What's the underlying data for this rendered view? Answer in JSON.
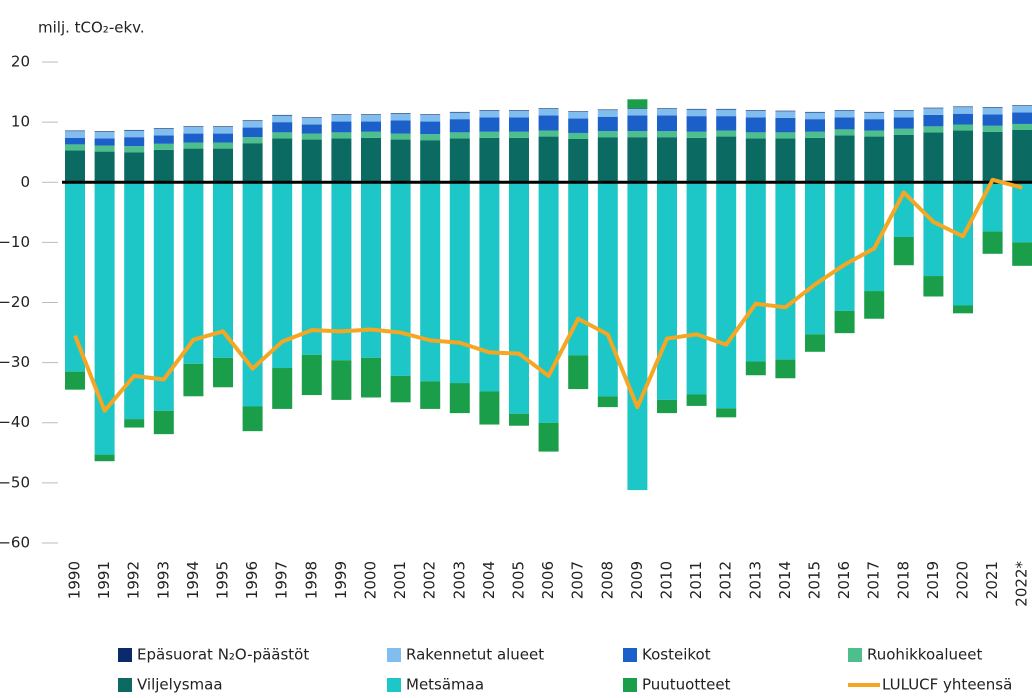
{
  "chart_data": {
    "type": "bar",
    "stacked": true,
    "title": "milj. tCO₂-ekv.",
    "categories": [
      "1990",
      "1991",
      "1992",
      "1993",
      "1994",
      "1995",
      "1996",
      "1997",
      "1998",
      "1999",
      "2000",
      "2001",
      "2002",
      "2003",
      "2004",
      "2005",
      "2006",
      "2007",
      "2008",
      "2009",
      "2010",
      "2011",
      "2012",
      "2013",
      "2014",
      "2015",
      "2016",
      "2017",
      "2018",
      "2019",
      "2020",
      "2021",
      "2022*"
    ],
    "series": [
      {
        "name": "Epäsuorat N₂O-päästöt",
        "color": "#0b2a6b",
        "values": [
          0.1,
          0.1,
          0.1,
          0.1,
          0.1,
          0.1,
          0.1,
          0.1,
          0.1,
          0.1,
          0.1,
          0.1,
          0.1,
          0.1,
          0.1,
          0.1,
          0.1,
          0.1,
          0.1,
          0.1,
          0.1,
          0.1,
          0.1,
          0.1,
          0.1,
          0.1,
          0.1,
          0.1,
          0.1,
          0.1,
          0.1,
          0.1,
          0.1
        ]
      },
      {
        "name": "Rakennetut alueet",
        "color": "#82bdf0",
        "values": [
          1.1,
          1.1,
          1.1,
          1.1,
          1.1,
          1.1,
          1.1,
          1.1,
          1.1,
          1.1,
          1.1,
          1.1,
          1.1,
          1.1,
          1.1,
          1.1,
          1.1,
          1.1,
          1.1,
          1.1,
          1.1,
          1.1,
          1.1,
          1.1,
          1.1,
          1.1,
          1.1,
          1.1,
          1.1,
          1.1,
          1.1,
          1.1,
          1.1
        ]
      },
      {
        "name": "Kosteikot",
        "color": "#1b5fc9",
        "values": [
          1.1,
          1.2,
          1.5,
          1.4,
          1.5,
          1.5,
          1.6,
          1.7,
          1.5,
          1.8,
          1.7,
          2.2,
          2.1,
          2.2,
          2.4,
          2.4,
          2.5,
          2.4,
          2.4,
          2.6,
          2.6,
          2.6,
          2.4,
          2.5,
          2.4,
          2.1,
          2.0,
          1.9,
          1.9,
          1.9,
          1.8,
          1.9,
          1.9
        ]
      },
      {
        "name": "Ruohikkoalueet",
        "color": "#4cbf8d",
        "values": [
          1.0,
          1.0,
          1.0,
          1.0,
          1.0,
          1.0,
          1.0,
          1.0,
          1.0,
          1.0,
          1.0,
          1.0,
          1.0,
          1.0,
          1.0,
          1.0,
          1.0,
          1.0,
          1.0,
          1.0,
          1.0,
          1.0,
          1.0,
          1.0,
          1.0,
          1.0,
          1.0,
          1.0,
          1.0,
          1.0,
          1.0,
          1.0,
          1.0
        ]
      },
      {
        "name": "Viljelysmaa",
        "color": "#0b6b63",
        "values": [
          5.3,
          5.1,
          5.0,
          5.4,
          5.6,
          5.6,
          6.5,
          7.3,
          7.1,
          7.3,
          7.4,
          7.1,
          7.0,
          7.3,
          7.4,
          7.4,
          7.6,
          7.2,
          7.5,
          7.5,
          7.5,
          7.4,
          7.6,
          7.3,
          7.3,
          7.4,
          7.8,
          7.6,
          7.9,
          8.3,
          8.6,
          8.4,
          8.7
        ]
      },
      {
        "name": "Metsämaa",
        "color": "#1ec7c7",
        "values": [
          -31.5,
          -45.3,
          -39.4,
          -38.0,
          -30.2,
          -29.2,
          -37.3,
          -30.9,
          -28.7,
          -29.6,
          -29.2,
          -32.2,
          -33.1,
          -33.4,
          -34.8,
          -38.5,
          -40.0,
          -28.8,
          -35.6,
          -51.2,
          -36.2,
          -35.3,
          -37.6,
          -29.8,
          -29.5,
          -25.3,
          -21.4,
          -18.1,
          -9.1,
          -15.6,
          -20.5,
          -8.2,
          -10.0
        ]
      },
      {
        "name": "Puutuotteet",
        "color": "#1a9e4a",
        "values": [
          -3.0,
          -1.1,
          -1.4,
          -3.9,
          -5.4,
          -4.9,
          -4.1,
          -6.8,
          -6.7,
          -6.6,
          -6.6,
          -4.4,
          -4.6,
          -5.0,
          -5.5,
          -2.0,
          -4.8,
          -5.6,
          -1.8,
          1.5,
          -2.2,
          -1.9,
          -1.5,
          -2.3,
          -3.1,
          -2.9,
          -3.7,
          -4.6,
          -4.7,
          -3.4,
          -1.3,
          -3.7,
          -3.9
        ]
      },
      {
        "name": "LULUCF yhteensä",
        "color": "#f5a623",
        "type": "line",
        "values": [
          -25.5,
          -38.0,
          -32.2,
          -32.8,
          -26.2,
          -24.8,
          -31.0,
          -26.5,
          -24.6,
          -24.8,
          -24.5,
          -25.0,
          -26.3,
          -26.7,
          -28.3,
          -28.5,
          -32.2,
          -22.7,
          -25.3,
          -37.4,
          -26.0,
          -25.3,
          -27.0,
          -20.2,
          -20.8,
          -17.0,
          -13.7,
          -11.0,
          -1.7,
          -6.6,
          -9.0,
          0.4,
          -0.9
        ]
      }
    ],
    "ylim": [
      -62,
      22
    ],
    "yticks": [
      20,
      10,
      0,
      {
        "value": -10,
        "label": "−10"
      },
      {
        "value": -20,
        "label": "−20"
      },
      {
        "value": -30,
        "label": "−30"
      },
      {
        "value": -40,
        "label": "−40"
      },
      {
        "value": -50,
        "label": "−50"
      },
      {
        "value": -60,
        "label": "−60"
      }
    ],
    "grid": false
  }
}
